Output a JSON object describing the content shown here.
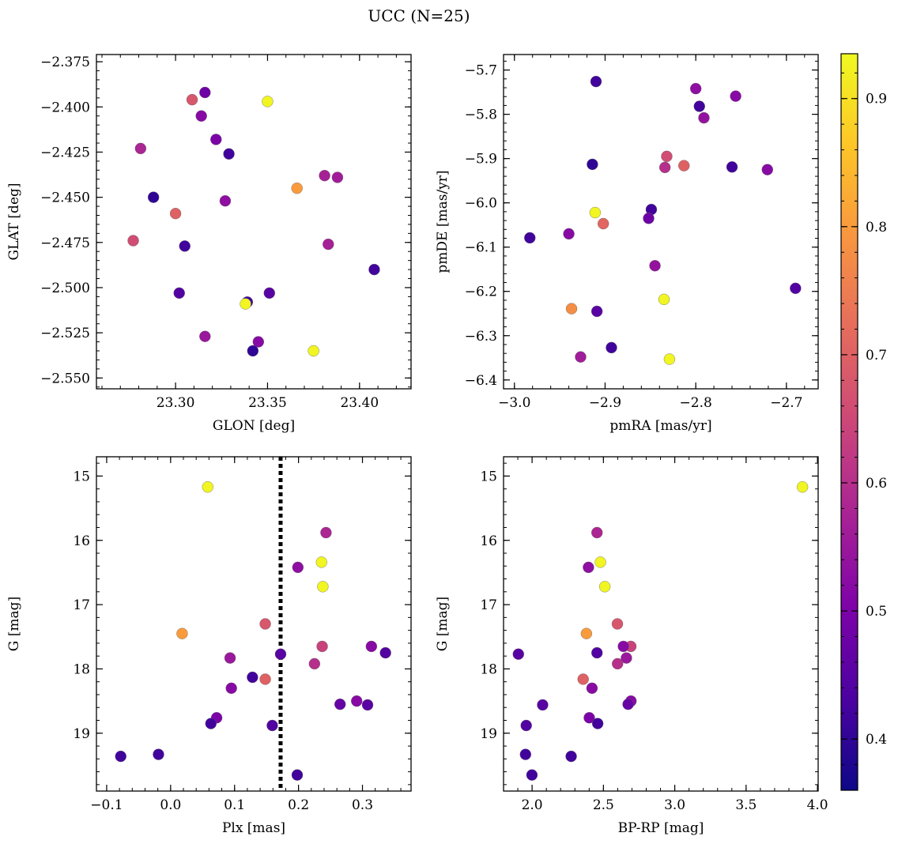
{
  "title": "UCC (N=25)",
  "colorbar": {
    "colormap": "plasma",
    "range": [
      0.36,
      0.935
    ],
    "ticks": [
      0.4,
      0.5,
      0.6,
      0.7,
      0.8,
      0.9
    ],
    "tick_labels": [
      "0.4",
      "0.5",
      "0.6",
      "0.7",
      "0.8",
      "0.9"
    ]
  },
  "marker_colors": {
    "edge": "#666666",
    "vline": "#000000"
  },
  "chart_data": [
    {
      "type": "scatter",
      "xlabel": "GLON [deg]",
      "ylabel": "GLAT [deg]",
      "xlim": [
        23.257,
        23.428
      ],
      "ylim": [
        -2.556,
        -2.371
      ],
      "invert_y": false,
      "xticks": [
        23.3,
        23.35,
        23.4
      ],
      "xtick_labels": [
        "23.30",
        "23.35",
        "23.40"
      ],
      "yticks": [
        -2.375,
        -2.4,
        -2.425,
        -2.45,
        -2.475,
        -2.5,
        -2.525,
        -2.55
      ],
      "ytick_labels": [
        "−2.375",
        "−2.400",
        "−2.425",
        "−2.450",
        "−2.475",
        "−2.500",
        "−2.525",
        "−2.550"
      ],
      "points": [
        {
          "x": 23.309,
          "y": -2.396,
          "c": 0.68
        },
        {
          "x": 23.316,
          "y": -2.392,
          "c": 0.48
        },
        {
          "x": 23.35,
          "y": -2.397,
          "c": 0.93
        },
        {
          "x": 23.314,
          "y": -2.405,
          "c": 0.52
        },
        {
          "x": 23.322,
          "y": -2.418,
          "c": 0.5
        },
        {
          "x": 23.281,
          "y": -2.423,
          "c": 0.58
        },
        {
          "x": 23.329,
          "y": -2.426,
          "c": 0.42
        },
        {
          "x": 23.381,
          "y": -2.438,
          "c": 0.57
        },
        {
          "x": 23.388,
          "y": -2.439,
          "c": 0.56
        },
        {
          "x": 23.366,
          "y": -2.445,
          "c": 0.8
        },
        {
          "x": 23.288,
          "y": -2.45,
          "c": 0.4
        },
        {
          "x": 23.327,
          "y": -2.452,
          "c": 0.53
        },
        {
          "x": 23.3,
          "y": -2.459,
          "c": 0.7
        },
        {
          "x": 23.277,
          "y": -2.474,
          "c": 0.66
        },
        {
          "x": 23.305,
          "y": -2.477,
          "c": 0.42
        },
        {
          "x": 23.383,
          "y": -2.476,
          "c": 0.57
        },
        {
          "x": 23.408,
          "y": -2.49,
          "c": 0.42
        },
        {
          "x": 23.302,
          "y": -2.503,
          "c": 0.44
        },
        {
          "x": 23.351,
          "y": -2.503,
          "c": 0.45
        },
        {
          "x": 23.339,
          "y": -2.508,
          "c": 0.42
        },
        {
          "x": 23.338,
          "y": -2.509,
          "c": 0.93
        },
        {
          "x": 23.316,
          "y": -2.527,
          "c": 0.55
        },
        {
          "x": 23.345,
          "y": -2.53,
          "c": 0.52
        },
        {
          "x": 23.342,
          "y": -2.535,
          "c": 0.4
        },
        {
          "x": 23.375,
          "y": -2.535,
          "c": 0.93
        }
      ]
    },
    {
      "type": "scatter",
      "xlabel": "pmRA [mas/yr]",
      "ylabel": "pmDE [mas/yr]",
      "xlim": [
        -3.012,
        -2.665
      ],
      "ylim": [
        -6.42,
        -5.665
      ],
      "invert_y": false,
      "xticks": [
        -3.0,
        -2.9,
        -2.8,
        -2.7
      ],
      "xtick_labels": [
        "−3.0",
        "−2.9",
        "−2.8",
        "−2.7"
      ],
      "yticks": [
        -5.7,
        -5.8,
        -5.9,
        -6.0,
        -6.1,
        -6.2,
        -6.3,
        -6.4
      ],
      "ytick_labels": [
        "−5.7",
        "−5.8",
        "−5.9",
        "−6.0",
        "−6.1",
        "−6.2",
        "−6.3",
        "−6.4"
      ],
      "points": [
        {
          "x": -2.91,
          "y": -5.726,
          "c": 0.42
        },
        {
          "x": -2.8,
          "y": -5.742,
          "c": 0.53
        },
        {
          "x": -2.756,
          "y": -5.759,
          "c": 0.52
        },
        {
          "x": -2.796,
          "y": -5.782,
          "c": 0.42
        },
        {
          "x": -2.791,
          "y": -5.808,
          "c": 0.54
        },
        {
          "x": -2.832,
          "y": -5.895,
          "c": 0.66
        },
        {
          "x": -2.914,
          "y": -5.913,
          "c": 0.4
        },
        {
          "x": -2.834,
          "y": -5.92,
          "c": 0.6
        },
        {
          "x": -2.813,
          "y": -5.916,
          "c": 0.7
        },
        {
          "x": -2.76,
          "y": -5.919,
          "c": 0.42
        },
        {
          "x": -2.721,
          "y": -5.925,
          "c": 0.52
        },
        {
          "x": -2.911,
          "y": -6.022,
          "c": 0.93
        },
        {
          "x": -2.849,
          "y": -6.015,
          "c": 0.42
        },
        {
          "x": -2.852,
          "y": -6.035,
          "c": 0.48
        },
        {
          "x": -2.902,
          "y": -6.047,
          "c": 0.71
        },
        {
          "x": -2.983,
          "y": -6.079,
          "c": 0.42
        },
        {
          "x": -2.94,
          "y": -6.07,
          "c": 0.52
        },
        {
          "x": -2.845,
          "y": -6.142,
          "c": 0.54
        },
        {
          "x": -2.69,
          "y": -6.193,
          "c": 0.44
        },
        {
          "x": -2.835,
          "y": -6.218,
          "c": 0.93
        },
        {
          "x": -2.937,
          "y": -6.239,
          "c": 0.78
        },
        {
          "x": -2.909,
          "y": -6.245,
          "c": 0.45
        },
        {
          "x": -2.893,
          "y": -6.327,
          "c": 0.42
        },
        {
          "x": -2.927,
          "y": -6.348,
          "c": 0.56
        },
        {
          "x": -2.829,
          "y": -6.353,
          "c": 0.93
        }
      ]
    },
    {
      "type": "scatter",
      "xlabel": "Plx [mas]",
      "ylabel": "G [mag]",
      "xlim": [
        -0.116,
        0.376
      ],
      "ylim": [
        19.9,
        14.7
      ],
      "invert_y": true,
      "vline": 0.172,
      "xticks": [
        -0.1,
        0.0,
        0.1,
        0.2,
        0.3
      ],
      "xtick_labels": [
        "−0.1",
        "0.0",
        "0.1",
        "0.2",
        "0.3"
      ],
      "yticks": [
        15,
        16,
        17,
        18,
        19
      ],
      "ytick_labels": [
        "15",
        "16",
        "17",
        "18",
        "19"
      ],
      "points": [
        {
          "x": 0.058,
          "y": 15.17,
          "c": 0.93
        },
        {
          "x": 0.243,
          "y": 15.88,
          "c": 0.58
        },
        {
          "x": 0.236,
          "y": 16.34,
          "c": 0.93
        },
        {
          "x": 0.199,
          "y": 16.42,
          "c": 0.53
        },
        {
          "x": 0.238,
          "y": 16.72,
          "c": 0.93
        },
        {
          "x": 0.018,
          "y": 17.45,
          "c": 0.8
        },
        {
          "x": 0.148,
          "y": 17.3,
          "c": 0.68
        },
        {
          "x": 0.237,
          "y": 17.65,
          "c": 0.64
        },
        {
          "x": 0.314,
          "y": 17.65,
          "c": 0.52
        },
        {
          "x": 0.336,
          "y": 17.75,
          "c": 0.44
        },
        {
          "x": 0.172,
          "y": 17.77,
          "c": 0.45
        },
        {
          "x": 0.093,
          "y": 17.83,
          "c": 0.55
        },
        {
          "x": 0.225,
          "y": 17.92,
          "c": 0.6
        },
        {
          "x": 0.128,
          "y": 18.13,
          "c": 0.42
        },
        {
          "x": 0.148,
          "y": 18.16,
          "c": 0.7
        },
        {
          "x": 0.095,
          "y": 18.3,
          "c": 0.52
        },
        {
          "x": 0.291,
          "y": 18.5,
          "c": 0.52
        },
        {
          "x": 0.265,
          "y": 18.55,
          "c": 0.47
        },
        {
          "x": 0.308,
          "y": 18.56,
          "c": 0.45
        },
        {
          "x": 0.072,
          "y": 18.76,
          "c": 0.5
        },
        {
          "x": 0.063,
          "y": 18.85,
          "c": 0.42
        },
        {
          "x": 0.159,
          "y": 18.88,
          "c": 0.44
        },
        {
          "x": -0.019,
          "y": 19.33,
          "c": 0.42
        },
        {
          "x": -0.078,
          "y": 19.36,
          "c": 0.42
        },
        {
          "x": 0.198,
          "y": 19.65,
          "c": 0.42
        }
      ]
    },
    {
      "type": "scatter",
      "xlabel": "BP-RP [mag]",
      "ylabel": "G [mag]",
      "xlim": [
        1.8,
        4.005
      ],
      "ylim": [
        19.9,
        14.7
      ],
      "invert_y": true,
      "xticks": [
        2.0,
        2.5,
        3.0,
        3.5,
        4.0
      ],
      "xtick_labels": [
        "2.0",
        "2.5",
        "3.0",
        "3.5",
        "4.0"
      ],
      "yticks": [
        15,
        16,
        17,
        18,
        19
      ],
      "ytick_labels": [
        "15",
        "16",
        "17",
        "18",
        "19"
      ],
      "points": [
        {
          "x": 3.895,
          "y": 15.17,
          "c": 0.93
        },
        {
          "x": 2.455,
          "y": 15.88,
          "c": 0.58
        },
        {
          "x": 2.479,
          "y": 16.34,
          "c": 0.93
        },
        {
          "x": 2.395,
          "y": 16.42,
          "c": 0.53
        },
        {
          "x": 2.51,
          "y": 16.72,
          "c": 0.93
        },
        {
          "x": 2.381,
          "y": 17.45,
          "c": 0.8
        },
        {
          "x": 2.598,
          "y": 17.3,
          "c": 0.68
        },
        {
          "x": 2.692,
          "y": 17.65,
          "c": 0.64
        },
        {
          "x": 2.64,
          "y": 17.65,
          "c": 0.52
        },
        {
          "x": 2.455,
          "y": 17.75,
          "c": 0.44
        },
        {
          "x": 1.904,
          "y": 17.77,
          "c": 0.45
        },
        {
          "x": 2.661,
          "y": 17.83,
          "c": 0.55
        },
        {
          "x": 2.599,
          "y": 17.92,
          "c": 0.6
        },
        {
          "x": 2.358,
          "y": 18.16,
          "c": 0.7
        },
        {
          "x": 2.42,
          "y": 18.3,
          "c": 0.52
        },
        {
          "x": 2.693,
          "y": 18.5,
          "c": 0.52
        },
        {
          "x": 2.673,
          "y": 18.55,
          "c": 0.47
        },
        {
          "x": 2.074,
          "y": 18.56,
          "c": 0.45
        },
        {
          "x": 2.401,
          "y": 18.76,
          "c": 0.5
        },
        {
          "x": 2.46,
          "y": 18.85,
          "c": 0.42
        },
        {
          "x": 1.959,
          "y": 18.88,
          "c": 0.44
        },
        {
          "x": 1.954,
          "y": 19.33,
          "c": 0.42
        },
        {
          "x": 2.274,
          "y": 19.36,
          "c": 0.42
        },
        {
          "x": 1.999,
          "y": 19.65,
          "c": 0.42
        }
      ]
    }
  ]
}
